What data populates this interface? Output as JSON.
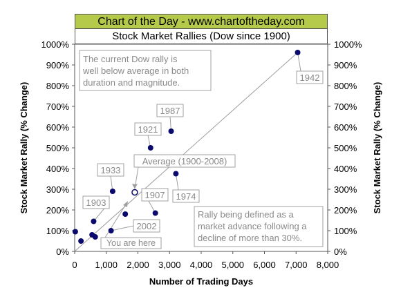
{
  "banner": "Chart of the Day - www.chartoftheday.com",
  "chart_data": {
    "type": "scatter",
    "title": "Stock Market Rallies (Dow since 1900)",
    "xlabel": "Number of Trading Days",
    "ylabel": "Stock Market Rally (% Change)",
    "y2label": "Stock Market Rally (% Change)",
    "xlim": [
      0,
      8000
    ],
    "ylim": [
      0,
      1000
    ],
    "x_ticks": [
      0,
      1000,
      2000,
      3000,
      4000,
      5000,
      6000,
      7000,
      8000
    ],
    "x_tick_labels": [
      "0",
      "1,000",
      "2,000",
      "3,000",
      "4,000",
      "5,000",
      "6,000",
      "7,000",
      "8,000"
    ],
    "y_ticks": [
      0,
      100,
      200,
      300,
      400,
      500,
      600,
      700,
      800,
      900,
      1000
    ],
    "y_tick_labels": [
      "0%",
      "100%",
      "200%",
      "300%",
      "400%",
      "500%",
      "600%",
      "700%",
      "800%",
      "900%",
      "1000%"
    ],
    "grid": false,
    "point_color": "#0a0a6e",
    "trend_color": "#9a9a9a",
    "points": [
      {
        "x": 20,
        "y": 95
      },
      {
        "x": 200,
        "y": 50
      },
      {
        "x": 550,
        "y": 80
      },
      {
        "x": 650,
        "y": 70
      },
      {
        "x": 600,
        "y": 145
      },
      {
        "x": 1150,
        "y": 100
      },
      {
        "x": 1200,
        "y": 290
      },
      {
        "x": 1600,
        "y": 180
      },
      {
        "x": 2400,
        "y": 500
      },
      {
        "x": 2550,
        "y": 185
      },
      {
        "x": 3050,
        "y": 580
      },
      {
        "x": 3200,
        "y": 375
      },
      {
        "x": 7050,
        "y": 960
      }
    ],
    "average_point": {
      "x": 1900,
      "y": 285,
      "label": "Average (1900-2008)"
    },
    "trend_line": {
      "x": [
        0,
        7050
      ],
      "y": [
        0,
        960
      ]
    },
    "point_labels": [
      {
        "text": "1942",
        "point_x": 7050,
        "point_y": 960
      },
      {
        "text": "1987",
        "point_x": 3050,
        "point_y": 580
      },
      {
        "text": "1921",
        "point_x": 2400,
        "point_y": 500
      },
      {
        "text": "1933",
        "point_x": 1200,
        "point_y": 290
      },
      {
        "text": "1903",
        "point_x": 600,
        "point_y": 145
      },
      {
        "text": "1907",
        "point_x": 2550,
        "point_y": 185
      },
      {
        "text": "1974",
        "point_x": 3200,
        "point_y": 375
      },
      {
        "text": "2002",
        "point_x": 1150,
        "point_y": 100
      }
    ],
    "annotations": {
      "you_are_here": "You are here",
      "top_note": [
        "The current Dow rally is",
        "well below average in both",
        "duration and magnitude."
      ],
      "bottom_note": [
        "Rally being defined as a",
        "market advance following a",
        "decline of more than 30%."
      ]
    }
  }
}
